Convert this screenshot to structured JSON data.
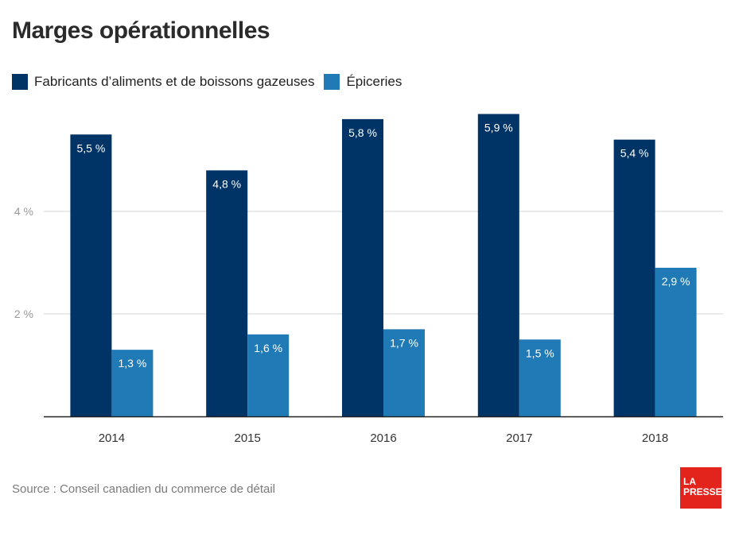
{
  "chart_data": {
    "type": "bar",
    "title": "Marges opérationnelles",
    "categories": [
      "2014",
      "2015",
      "2016",
      "2017",
      "2018"
    ],
    "series": [
      {
        "name": "Fabricants d’aliments et de boissons gazeuses",
        "color": "#003366",
        "values": [
          5.5,
          4.8,
          5.8,
          5.9,
          5.4
        ],
        "labels": [
          "5,5 %",
          "4,8 %",
          "5,8 %",
          "5,9 %",
          "5,4 %"
        ]
      },
      {
        "name": "Épiceries",
        "color": "#207ab5",
        "values": [
          1.3,
          1.6,
          1.7,
          1.5,
          2.9
        ],
        "labels": [
          "1,3 %",
          "1,6 %",
          "1,7 %",
          "1,5 %",
          "2,9 %"
        ]
      }
    ],
    "xlabel": "",
    "ylabel": "",
    "ylim": [
      0,
      6
    ],
    "yticks": [
      2,
      4
    ],
    "ytick_labels": [
      "2 %",
      "4 %"
    ],
    "grid": true,
    "legend_position": "top-left",
    "source": "Source : Conseil canadien du commerce de détail"
  },
  "branding": {
    "logo_line1": "LA",
    "logo_line2": "PRESSE",
    "logo_color": "#e2241d"
  }
}
